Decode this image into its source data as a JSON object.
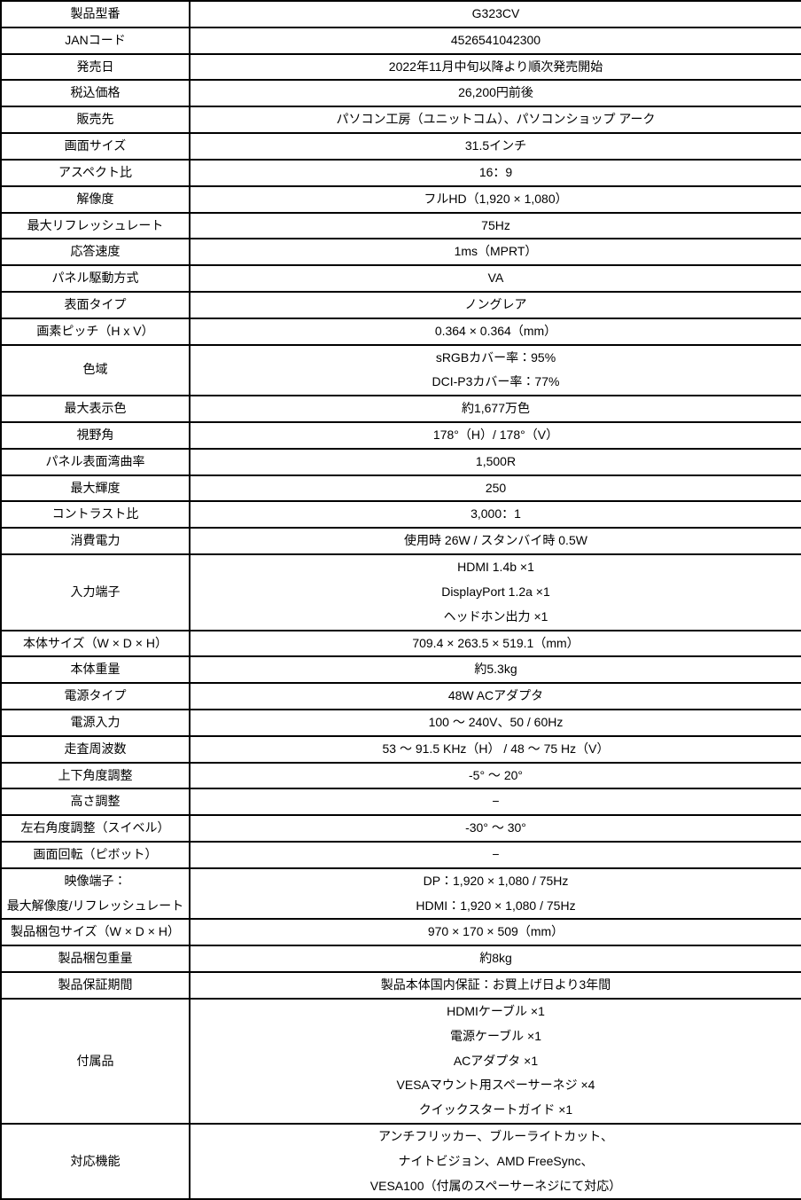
{
  "table": {
    "colors": {
      "border": "#000000",
      "text": "#000000",
      "background": "#ffffff"
    },
    "rows": [
      {
        "lines": 1,
        "label_lines": [
          "製品型番"
        ],
        "value_lines": [
          "G323CV"
        ]
      },
      {
        "lines": 1,
        "label_lines": [
          "JANコード"
        ],
        "value_lines": [
          "4526541042300"
        ]
      },
      {
        "lines": 1,
        "label_lines": [
          "発売日"
        ],
        "value_lines": [
          "2022年11月中旬以降より順次発売開始"
        ]
      },
      {
        "lines": 1,
        "label_lines": [
          "税込価格"
        ],
        "value_lines": [
          "26,200円前後"
        ]
      },
      {
        "lines": 1,
        "label_lines": [
          "販売先"
        ],
        "value_lines": [
          "パソコン工房（ユニットコム）、パソコンショップ アーク"
        ]
      },
      {
        "lines": 1,
        "label_lines": [
          "画面サイズ"
        ],
        "value_lines": [
          "31.5インチ"
        ]
      },
      {
        "lines": 1,
        "label_lines": [
          "アスペクト比"
        ],
        "value_lines": [
          "16：9"
        ]
      },
      {
        "lines": 1,
        "label_lines": [
          "解像度"
        ],
        "value_lines": [
          "フルHD（1,920 × 1,080）"
        ]
      },
      {
        "lines": 1,
        "label_lines": [
          "最大リフレッシュレート"
        ],
        "value_lines": [
          "75Hz"
        ]
      },
      {
        "lines": 1,
        "label_lines": [
          "応答速度"
        ],
        "value_lines": [
          "1ms（MPRT）"
        ]
      },
      {
        "lines": 1,
        "label_lines": [
          "パネル駆動方式"
        ],
        "value_lines": [
          "VA"
        ]
      },
      {
        "lines": 1,
        "label_lines": [
          "表面タイプ"
        ],
        "value_lines": [
          "ノングレア"
        ]
      },
      {
        "lines": 1,
        "label_lines": [
          "画素ピッチ（H x V）"
        ],
        "value_lines": [
          "0.364 × 0.364（mm）"
        ]
      },
      {
        "lines": 2,
        "label_lines": [
          "色域"
        ],
        "value_lines": [
          "sRGBカバー率：95%",
          "DCI-P3カバー率：77%"
        ]
      },
      {
        "lines": 1,
        "label_lines": [
          "最大表示色"
        ],
        "value_lines": [
          "約1,677万色"
        ]
      },
      {
        "lines": 1,
        "label_lines": [
          "視野角"
        ],
        "value_lines": [
          "178°（H）/ 178°（V）"
        ]
      },
      {
        "lines": 1,
        "label_lines": [
          "パネル表面湾曲率"
        ],
        "value_lines": [
          "1,500R"
        ]
      },
      {
        "lines": 1,
        "label_lines": [
          "最大輝度"
        ],
        "value_lines": [
          "250"
        ]
      },
      {
        "lines": 1,
        "label_lines": [
          "コントラスト比"
        ],
        "value_lines": [
          "3,000：1"
        ]
      },
      {
        "lines": 1,
        "label_lines": [
          "消費電力"
        ],
        "value_lines": [
          "使用時 26W / スタンバイ時 0.5W"
        ]
      },
      {
        "lines": 3,
        "label_lines": [
          "入力端子"
        ],
        "value_lines": [
          "HDMI 1.4b ×1",
          "DisplayPort 1.2a ×1",
          "ヘッドホン出力 ×1"
        ]
      },
      {
        "lines": 1,
        "label_lines": [
          "本体サイズ（W × D × H）"
        ],
        "value_lines": [
          "709.4 × 263.5 × 519.1（mm）"
        ]
      },
      {
        "lines": 1,
        "label_lines": [
          "本体重量"
        ],
        "value_lines": [
          "約5.3kg"
        ]
      },
      {
        "lines": 1,
        "label_lines": [
          "電源タイプ"
        ],
        "value_lines": [
          "48W ACアダプタ"
        ]
      },
      {
        "lines": 1,
        "label_lines": [
          "電源入力"
        ],
        "value_lines": [
          "100 ～ 240V、50 / 60Hz"
        ]
      },
      {
        "lines": 1,
        "label_lines": [
          "走査周波数"
        ],
        "value_lines": [
          "53 ～ 91.5 KHz（H） / 48 ～ 75 Hz（V）"
        ]
      },
      {
        "lines": 1,
        "label_lines": [
          "上下角度調整"
        ],
        "value_lines": [
          "-5° ～ 20°"
        ]
      },
      {
        "lines": 1,
        "label_lines": [
          "高さ調整"
        ],
        "value_lines": [
          "−"
        ]
      },
      {
        "lines": 1,
        "label_lines": [
          "左右角度調整（スイベル）"
        ],
        "value_lines": [
          "-30° ～ 30°"
        ]
      },
      {
        "lines": 1,
        "label_lines": [
          "画面回転（ピボット）"
        ],
        "value_lines": [
          "−"
        ]
      },
      {
        "lines": 2,
        "label_lines": [
          "映像端子：",
          "最大解像度/リフレッシュレート"
        ],
        "value_lines": [
          "DP：1,920 × 1,080 / 75Hz",
          "HDMI：1,920 × 1,080 / 75Hz"
        ]
      },
      {
        "lines": 1,
        "label_lines": [
          "製品梱包サイズ（W × D × H）"
        ],
        "value_lines": [
          "970 ×  170 × 509（mm）"
        ]
      },
      {
        "lines": 1,
        "label_lines": [
          "製品梱包重量"
        ],
        "value_lines": [
          "約8kg"
        ]
      },
      {
        "lines": 1,
        "label_lines": [
          "製品保証期間"
        ],
        "value_lines": [
          "製品本体国内保証：お買上げ日より3年間"
        ]
      },
      {
        "lines": 5,
        "label_lines": [
          "付属品"
        ],
        "value_lines": [
          "HDMIケーブル ×1",
          "電源ケーブル ×1",
          "ACアダプタ ×1",
          "VESAマウント用スペーサーネジ ×4",
          "クイックスタートガイド ×1"
        ]
      },
      {
        "lines": 3,
        "label_lines": [
          "対応機能"
        ],
        "value_lines": [
          "アンチフリッカー、ブルーライトカット、",
          "ナイトビジョン、AMD FreeSync、",
          "VESA100（付属のスペーサーネジにて対応）"
        ]
      }
    ]
  }
}
